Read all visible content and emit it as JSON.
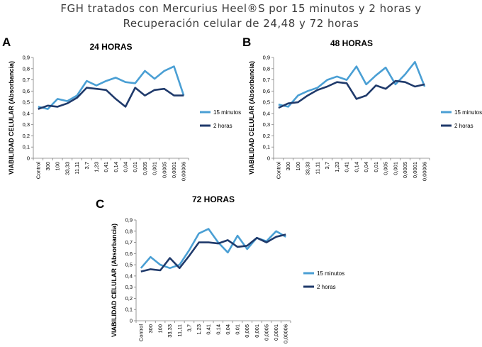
{
  "figure": {
    "title_line1": "FGH tratados con Mercurius Heel®S por 15 minutos y 2 horas y",
    "title_line2": "Recuperación celular de 24,48 y 72 horas"
  },
  "colors": {
    "s15": "#4a9fd4",
    "s2h": "#1f3a6b"
  },
  "chart_data": [
    {
      "type": "line",
      "panel": "A",
      "title": "24 HORAS",
      "ylabel": "VIABILIDAD CELULAR (Absorbancia)",
      "xlabel": "",
      "ylim": [
        0,
        0.9
      ],
      "yticks": [
        "0",
        "0,1",
        "0,2",
        "0,3",
        "0,4",
        "0,5",
        "0,6",
        "0,7",
        "0,8",
        "0,9"
      ],
      "categories": [
        "Control",
        "300",
        "100",
        "33,33",
        "11,11",
        "3,7",
        "1,23",
        "0,41",
        "0,14",
        "0,04",
        "0,01",
        "0,005",
        "0,001",
        "0,0005",
        "0,0001",
        "0,00006"
      ],
      "legend_position": "right",
      "series": [
        {
          "name": "15 minutos",
          "values": [
            0.46,
            0.44,
            0.53,
            0.51,
            0.56,
            0.69,
            0.65,
            0.69,
            0.72,
            0.68,
            0.67,
            0.78,
            0.71,
            0.78,
            0.82,
            0.56
          ]
        },
        {
          "name": "2 horas",
          "values": [
            0.44,
            0.47,
            0.46,
            0.49,
            0.54,
            0.63,
            0.62,
            0.61,
            0.53,
            0.46,
            0.63,
            0.56,
            0.61,
            0.62,
            0.56,
            0.56
          ]
        }
      ]
    },
    {
      "type": "line",
      "panel": "B",
      "title": "48 HORAS",
      "ylabel": "VIABILIDAD CELULAR (Absorbancia)",
      "xlabel": "",
      "ylim": [
        0,
        0.9
      ],
      "yticks": [
        "0",
        "0,1",
        "0,2",
        "0,3",
        "0,4",
        "0,5",
        "0,6",
        "0,7",
        "0,8",
        "0,9"
      ],
      "categories": [
        "Control",
        "300",
        "100",
        "33,33",
        "11,11",
        "3,7",
        "1,23",
        "0,41",
        "0,14",
        "0,04",
        "0,01",
        "0,005",
        "0,001",
        "0,0005",
        "0,0001",
        "0,00006"
      ],
      "legend_position": "right",
      "series": [
        {
          "name": "15 minutos",
          "values": [
            0.48,
            0.46,
            0.56,
            0.6,
            0.63,
            0.7,
            0.73,
            0.7,
            0.82,
            0.66,
            0.74,
            0.81,
            0.66,
            0.75,
            0.86,
            0.64
          ]
        },
        {
          "name": "2 horas",
          "values": [
            0.45,
            0.49,
            0.5,
            0.56,
            0.61,
            0.64,
            0.68,
            0.67,
            0.53,
            0.56,
            0.65,
            0.62,
            0.69,
            0.68,
            0.64,
            0.66
          ]
        }
      ]
    },
    {
      "type": "line",
      "panel": "C",
      "title": "72 HORAS",
      "ylabel": "VIABILIDAD CELULAR (Absorbancia)",
      "xlabel": "",
      "ylim": [
        0,
        0.9
      ],
      "yticks": [
        "0",
        "0,1",
        "0,2",
        "0,3",
        "0,4",
        "0,5",
        "0,6",
        "0,7",
        "0,8",
        "0,9"
      ],
      "categories": [
        "Control",
        "300",
        "100",
        "33,33",
        "11,11",
        "3,7",
        "1,23",
        "0,41",
        "0,14",
        "0,04",
        "0,01",
        "0,005",
        "0,001",
        "0,0005",
        "0,0001",
        "0,00006"
      ],
      "legend_position": "right",
      "series": [
        {
          "name": "15 minutos",
          "values": [
            0.47,
            0.57,
            0.5,
            0.47,
            0.5,
            0.63,
            0.78,
            0.82,
            0.7,
            0.61,
            0.76,
            0.64,
            0.74,
            0.71,
            0.8,
            0.75
          ]
        },
        {
          "name": "2 horas",
          "values": [
            0.44,
            0.46,
            0.45,
            0.56,
            0.47,
            0.58,
            0.7,
            0.7,
            0.69,
            0.72,
            0.66,
            0.67,
            0.74,
            0.7,
            0.75,
            0.77
          ]
        }
      ]
    }
  ]
}
